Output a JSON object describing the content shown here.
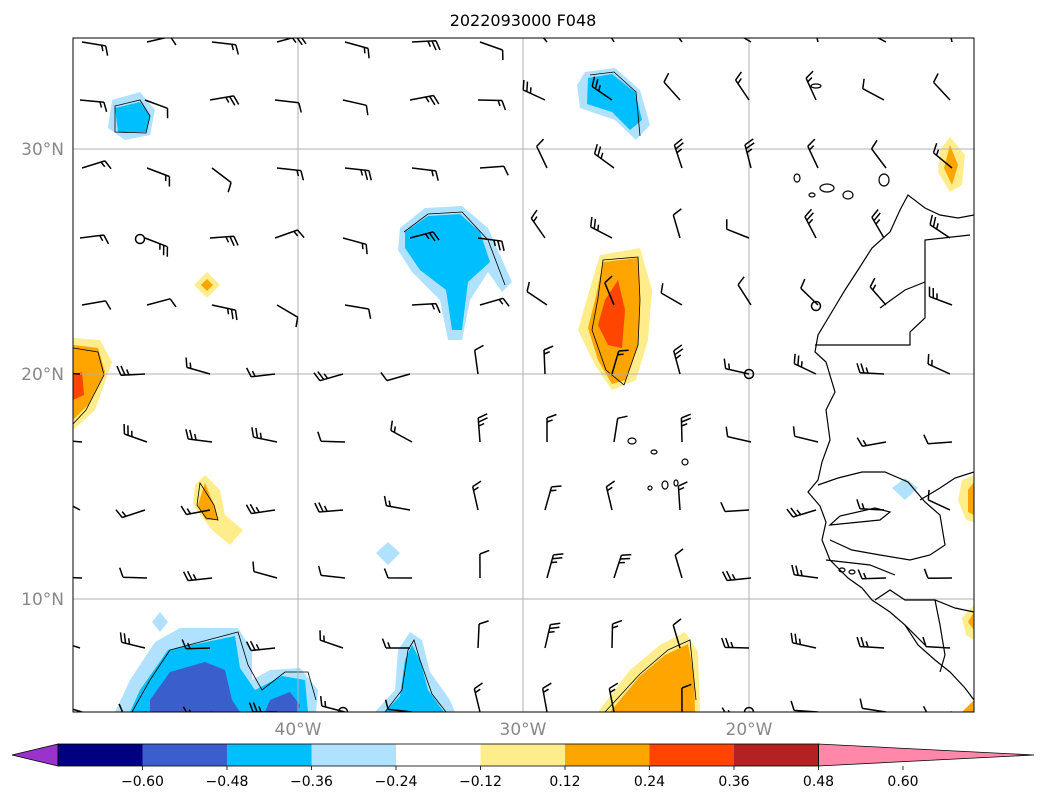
{
  "title": "2022093000 F048",
  "lat_labels": [
    "30°N",
    "20°N",
    "10°N"
  ],
  "lon_labels": [
    "40°W",
    "30°W",
    "20°W"
  ],
  "colorbar": {
    "tick_labels": [
      "−0.60",
      "−0.48",
      "−0.36",
      "−0.24",
      "−0.12",
      "0.12",
      "0.24",
      "0.36",
      "0.48",
      "0.60"
    ],
    "colors": [
      "#9933cc",
      "#000080",
      "#3a5fcd",
      "#00bfff",
      "#b0e2ff",
      "#ffffff",
      "#ffec8b",
      "#ffa500",
      "#ff4500",
      "#b22222",
      "#ff88aa"
    ]
  },
  "grid": true
}
